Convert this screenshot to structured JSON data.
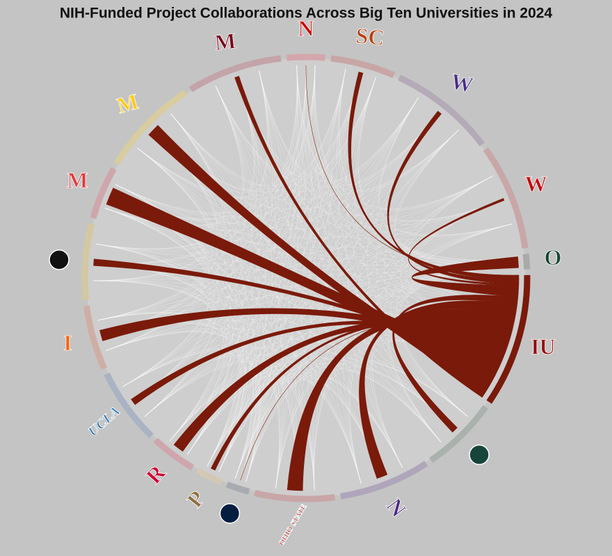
{
  "chart_data": {
    "type": "chord",
    "title": "NIH-Funded Project Collaborations Across Big Ten Universities in 2024",
    "categories": [
      "N",
      "SC",
      "W",
      "W",
      "O",
      "IU",
      null,
      "N",
      "OHIO STATE",
      null,
      "P",
      "R",
      "UCLA",
      "I",
      null,
      "M",
      "M",
      "M"
    ],
    "values": [
      10,
      17,
      28,
      28,
      4,
      35,
      20,
      24,
      21,
      6,
      7,
      12,
      20,
      17,
      20,
      14,
      26,
      25
    ],
    "link_values": [
      0,
      2,
      2,
      1,
      5,
      null,
      3,
      5,
      7,
      0,
      2,
      5,
      3,
      5,
      3,
      8,
      6,
      2
    ],
    "colors": [
      "#d4a6ab",
      "#c9a6a6",
      "#b4aab8",
      "#c9a6a8",
      "#a8aaa8",
      "#7a1a0a",
      "#a9b2ac",
      "#b0a6bb",
      "#c9a6a8",
      "#a8abb2",
      "#d2c8b4",
      "#cfa6ad",
      "#a9b3c4",
      "#cfaea6",
      "#d3c8a0",
      "#cfa6ab",
      "#d8cca0",
      "#c3a4a8"
    ],
    "logo_colors": [
      "#d00000",
      "#b8410b",
      "#4b2e83",
      "#c5050c",
      "#154733",
      "#990000",
      "#18453b",
      "#4e2a84",
      "#bb0000",
      "#041e42",
      "#8e6f3e",
      "#cc0033",
      "#2774ae",
      "#ff5f05",
      "#111111",
      "#e03a3e",
      "#ffcb05",
      "#7a0019"
    ],
    "link_color": "#7a1a0a"
  }
}
